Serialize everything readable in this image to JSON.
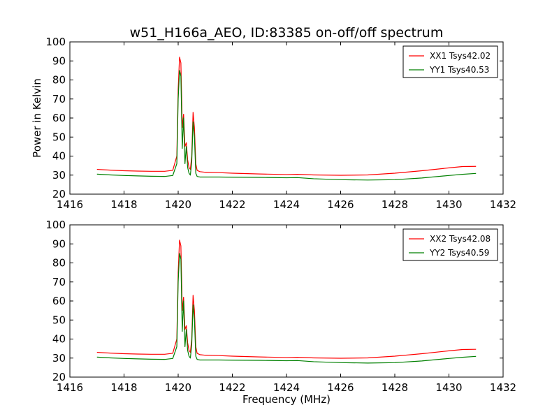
{
  "figure": {
    "title": "w51_H166a_AEO, ID:83385 on-off/off spectrum",
    "xlabel": "Frequency (MHz)"
  },
  "chart_data": [
    {
      "type": "line",
      "title": "w51_H166a_AEO, ID:83385 on-off/off spectrum",
      "xlabel": "",
      "ylabel": "Power in Kelvin",
      "xlim": [
        1416,
        1432
      ],
      "ylim": [
        20,
        100
      ],
      "xticks": [
        1416,
        1418,
        1420,
        1422,
        1424,
        1426,
        1428,
        1430,
        1432
      ],
      "yticks": [
        20,
        30,
        40,
        50,
        60,
        70,
        80,
        90,
        100
      ],
      "grid": false,
      "legend_position": "top-right",
      "series": [
        {
          "name": "XX1 Tsys42.02",
          "color": "#ff0000",
          "x": [
            1417.0,
            1417.5,
            1418.0,
            1418.5,
            1419.0,
            1419.5,
            1419.8,
            1419.95,
            1420.0,
            1420.05,
            1420.1,
            1420.15,
            1420.2,
            1420.25,
            1420.3,
            1420.35,
            1420.4,
            1420.45,
            1420.5,
            1420.55,
            1420.6,
            1420.65,
            1420.7,
            1420.8,
            1421.0,
            1421.5,
            1422.0,
            1423.0,
            1424.0,
            1424.4,
            1425.0,
            1426.0,
            1427.0,
            1428.0,
            1429.0,
            1430.0,
            1430.5,
            1431.0
          ],
          "values": [
            33.0,
            32.6,
            32.3,
            32.1,
            32.0,
            32.0,
            32.5,
            40.0,
            75.0,
            92.0,
            89.0,
            55.0,
            62.0,
            45.0,
            47.0,
            38.0,
            34.0,
            33.0,
            40.0,
            63.0,
            55.0,
            36.0,
            32.5,
            31.8,
            31.5,
            31.3,
            31.0,
            30.6,
            30.3,
            30.4,
            30.1,
            29.9,
            30.1,
            31.0,
            32.3,
            33.8,
            34.5,
            34.6
          ]
        },
        {
          "name": "YY1 Tsys40.53",
          "color": "#008000",
          "x": [
            1417.0,
            1417.5,
            1418.0,
            1418.5,
            1419.0,
            1419.5,
            1419.8,
            1419.95,
            1420.0,
            1420.05,
            1420.1,
            1420.15,
            1420.2,
            1420.25,
            1420.3,
            1420.35,
            1420.4,
            1420.45,
            1420.5,
            1420.55,
            1420.6,
            1420.65,
            1420.7,
            1420.8,
            1421.0,
            1421.5,
            1422.0,
            1423.0,
            1424.0,
            1424.4,
            1425.0,
            1426.0,
            1427.0,
            1428.0,
            1429.0,
            1430.0,
            1430.5,
            1431.0
          ],
          "values": [
            30.5,
            30.1,
            29.8,
            29.6,
            29.4,
            29.3,
            29.8,
            36.0,
            70.0,
            85.0,
            82.0,
            44.0,
            60.0,
            36.0,
            45.0,
            34.0,
            31.0,
            30.0,
            37.0,
            58.0,
            50.0,
            31.0,
            29.3,
            29.0,
            29.0,
            29.0,
            28.9,
            28.8,
            28.6,
            28.7,
            28.1,
            27.6,
            27.4,
            27.6,
            28.5,
            29.8,
            30.4,
            30.9
          ]
        }
      ]
    },
    {
      "type": "line",
      "title": "",
      "xlabel": "Frequency (MHz)",
      "ylabel": "",
      "xlim": [
        1416,
        1432
      ],
      "ylim": [
        20,
        100
      ],
      "xticks": [
        1416,
        1418,
        1420,
        1422,
        1424,
        1426,
        1428,
        1430,
        1432
      ],
      "yticks": [
        20,
        30,
        40,
        50,
        60,
        70,
        80,
        90,
        100
      ],
      "grid": false,
      "legend_position": "top-right",
      "series": [
        {
          "name": "XX2 Tsys42.08",
          "color": "#ff0000",
          "x": [
            1417.0,
            1417.5,
            1418.0,
            1418.5,
            1419.0,
            1419.5,
            1419.8,
            1419.95,
            1420.0,
            1420.05,
            1420.1,
            1420.15,
            1420.2,
            1420.25,
            1420.3,
            1420.35,
            1420.4,
            1420.45,
            1420.5,
            1420.55,
            1420.6,
            1420.65,
            1420.7,
            1420.8,
            1421.0,
            1421.5,
            1422.0,
            1423.0,
            1424.0,
            1424.4,
            1425.0,
            1426.0,
            1427.0,
            1428.0,
            1429.0,
            1430.0,
            1430.5,
            1431.0
          ],
          "values": [
            33.0,
            32.6,
            32.3,
            32.1,
            32.0,
            32.0,
            32.5,
            40.0,
            75.0,
            92.0,
            89.0,
            55.0,
            62.0,
            45.0,
            47.0,
            38.0,
            34.0,
            33.0,
            40.0,
            63.0,
            55.0,
            36.0,
            32.5,
            31.8,
            31.5,
            31.3,
            31.0,
            30.6,
            30.3,
            30.4,
            30.1,
            29.9,
            30.1,
            31.0,
            32.3,
            33.8,
            34.5,
            34.6
          ]
        },
        {
          "name": "YY2 Tsys40.59",
          "color": "#008000",
          "x": [
            1417.0,
            1417.5,
            1418.0,
            1418.5,
            1419.0,
            1419.5,
            1419.8,
            1419.95,
            1420.0,
            1420.05,
            1420.1,
            1420.15,
            1420.2,
            1420.25,
            1420.3,
            1420.35,
            1420.4,
            1420.45,
            1420.5,
            1420.55,
            1420.6,
            1420.65,
            1420.7,
            1420.8,
            1421.0,
            1421.5,
            1422.0,
            1423.0,
            1424.0,
            1424.4,
            1425.0,
            1426.0,
            1427.0,
            1428.0,
            1429.0,
            1430.0,
            1430.5,
            1431.0
          ],
          "values": [
            30.5,
            30.1,
            29.8,
            29.6,
            29.4,
            29.3,
            29.8,
            36.0,
            70.0,
            85.0,
            82.0,
            44.0,
            60.0,
            36.0,
            45.0,
            34.0,
            31.0,
            30.0,
            37.0,
            58.0,
            50.0,
            31.0,
            29.3,
            29.0,
            29.0,
            29.0,
            28.9,
            28.8,
            28.6,
            28.7,
            28.1,
            27.6,
            27.4,
            27.6,
            28.5,
            29.8,
            30.4,
            30.9
          ]
        }
      ]
    }
  ]
}
